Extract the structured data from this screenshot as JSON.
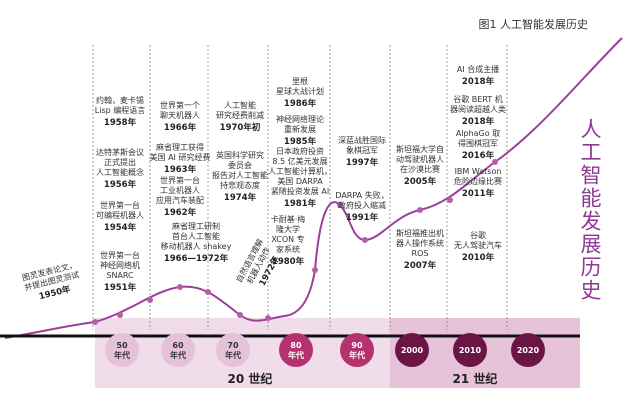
{
  "header": {
    "title": "图1 人工智能发展历史"
  },
  "vertical_title": "人工智能发展历史",
  "events": [
    {
      "lines": [
        "图灵发表论文，",
        "并提出图灵测试"
      ],
      "year": "1950年"
    },
    {
      "lines": [
        "世界第一台",
        "神经网络机",
        "SNARC"
      ],
      "year": "1951年"
    },
    {
      "lines": [
        "世界第一台",
        "可编程机器人"
      ],
      "year": "1954年"
    },
    {
      "lines": [
        "达特茅斯会议",
        "正式提出",
        "人工智能概念"
      ],
      "year": "1956年"
    },
    {
      "lines": [
        "约翰，麦卡锡",
        "Lisp 编程语言"
      ],
      "year": "1958年"
    },
    {
      "lines": [
        "世界第一个",
        "聊天机器人"
      ],
      "year": "1966年"
    },
    {
      "lines": [
        "麻省理工获得",
        "美国 AI 研究经费"
      ],
      "year": "1963年"
    },
    {
      "lines": [
        "世界第一台",
        "工业机器人",
        "应用汽车装配"
      ],
      "year": "1962年"
    },
    {
      "lines": [
        "麻省理工研制",
        "首台人工智能",
        "移动机器人 shakey"
      ],
      "year": "1966—1972年"
    },
    {
      "lines": [
        "人工智能",
        "研究经费削减"
      ],
      "year": "1970年初"
    },
    {
      "lines": [
        "英国科学研究",
        "委员会",
        "报告对人工智能",
        "持悲观态度"
      ],
      "year": "1974年"
    },
    {
      "lines": [
        "自然语言理解",
        "机器人动作"
      ],
      "year": "1972年"
    },
    {
      "lines": [
        "里根",
        "星球大战计划"
      ],
      "year": "1986年"
    },
    {
      "lines": [
        "神经网络理论",
        "重新发展"
      ],
      "year": "1985年"
    },
    {
      "lines": [
        "日本政府投资",
        "8.5 亿美元发展",
        "人工智能计算机，",
        "美国 DARPA",
        "紧随投资发展 AI"
      ],
      "year": "1981年"
    },
    {
      "lines": [
        "卡耐基·梅",
        "隆大学",
        "XCON 专",
        "家系统"
      ],
      "year": "1980年"
    },
    {
      "lines": [
        "深蓝战胜国际",
        "象棋冠军"
      ],
      "year": "1997年"
    },
    {
      "lines": [
        "DARPA 失败，",
        "政府投入缩减"
      ],
      "year": "1991年"
    },
    {
      "lines": [
        "斯坦福大学自",
        "动驾驶机器人",
        "在沙漠比赛"
      ],
      "year": "2005年"
    },
    {
      "lines": [
        "斯坦福推出机",
        "器人操作系统",
        "ROS"
      ],
      "year": "2007年"
    },
    {
      "lines": [
        "AI 合成主播"
      ],
      "year": "2018年"
    },
    {
      "lines": [
        "谷歌 BERT 机",
        "器阅读超越人类"
      ],
      "year": "2018年"
    },
    {
      "lines": [
        "AlphaGo 取",
        "得围棋冠军"
      ],
      "year": "2016年"
    },
    {
      "lines": [
        "IBM Watson",
        "危险边缘比赛"
      ],
      "year": "2011年"
    },
    {
      "lines": [
        "谷歌",
        "无人驾驶汽车"
      ],
      "year": "2010年"
    }
  ],
  "decades": [
    {
      "lines": [
        "50",
        "年代"
      ]
    },
    {
      "lines": [
        "60",
        "年代"
      ]
    },
    {
      "lines": [
        "70",
        "年代"
      ]
    },
    {
      "lines": [
        "80",
        "年代"
      ]
    },
    {
      "lines": [
        "90",
        "年代"
      ]
    },
    {
      "lines": [
        "2000"
      ]
    },
    {
      "lines": [
        "2010"
      ]
    },
    {
      "lines": [
        "2020"
      ]
    }
  ],
  "centuries": [
    "20 世纪",
    "21 世纪"
  ]
}
